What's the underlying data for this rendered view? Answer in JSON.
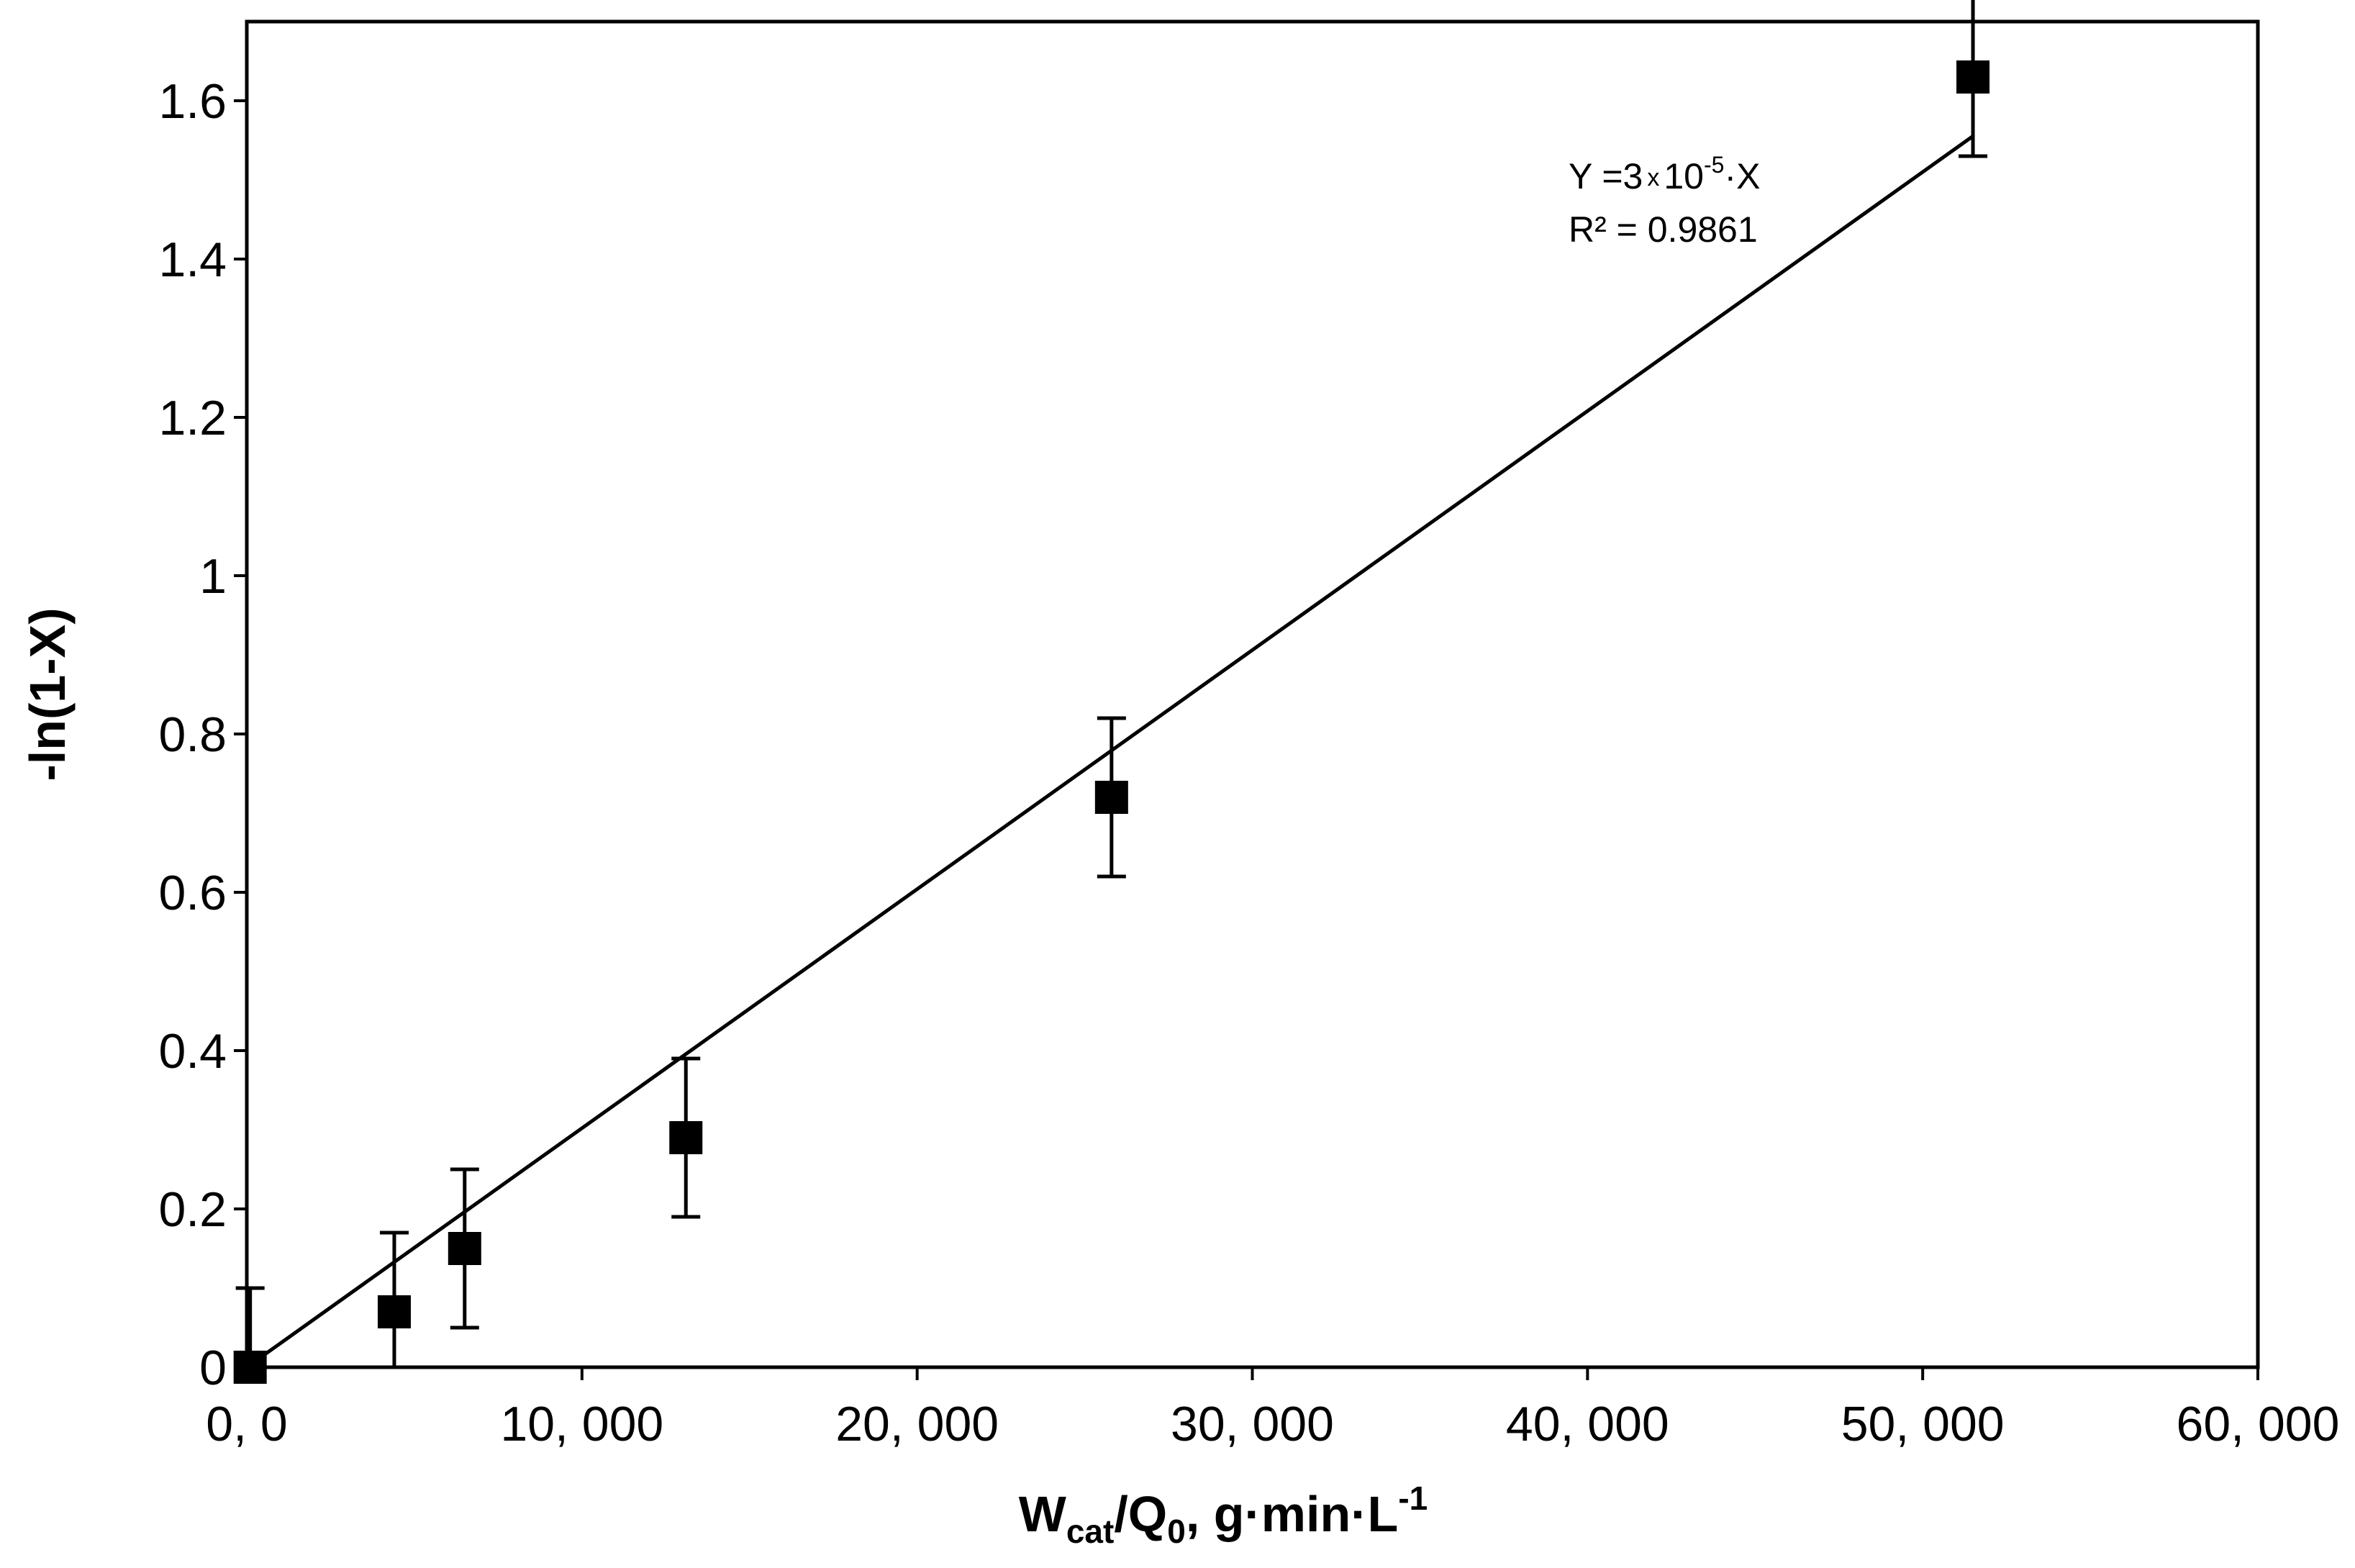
{
  "chart_data": {
    "type": "scatter",
    "title": "",
    "xlabel": {
      "main": "W",
      "main_sub": "cat",
      "mid": "/Q",
      "mid_sub": "0",
      "unit": ", g·min·L",
      "unit_sup": "-1"
    },
    "ylabel": "-ln(1-X)",
    "xlim": [
      0,
      60000
    ],
    "ylim": [
      0,
      1.7
    ],
    "x_ticks": [
      0,
      10000,
      20000,
      30000,
      40000,
      50000,
      60000
    ],
    "x_tick_labels": [
      "0, 0",
      "10, 000",
      "20, 000",
      "30, 000",
      "40, 000",
      "50, 000",
      "60, 000"
    ],
    "y_ticks": [
      0,
      0.2,
      0.4,
      0.6,
      0.8,
      1,
      1.2,
      1.4,
      1.6
    ],
    "y_tick_labels": [
      "0",
      "0.2",
      "0.4",
      "0.6",
      "0.8",
      "1",
      "1.2",
      "1.4",
      "1.6"
    ],
    "grid": false,
    "series": [
      {
        "name": "data",
        "marker": "square",
        "x": [
          100,
          4400,
          6500,
          13100,
          25800,
          51500
        ],
        "y": [
          0.0,
          0.07,
          0.15,
          0.29,
          0.72,
          1.63
        ],
        "error": [
          0.1,
          0.1,
          0.1,
          0.1,
          0.1,
          0.1
        ]
      }
    ],
    "trendline": {
      "slope": 3.02e-05,
      "x_range": [
        0,
        51500
      ],
      "equation": {
        "prefix": "Y =3",
        "times": "x",
        "base": "10",
        "exp": "-5",
        "suffix": "·X"
      },
      "r2_text": "R² = 0.9861"
    }
  },
  "colors": {
    "ink": "#000000",
    "background": "#ffffff"
  }
}
